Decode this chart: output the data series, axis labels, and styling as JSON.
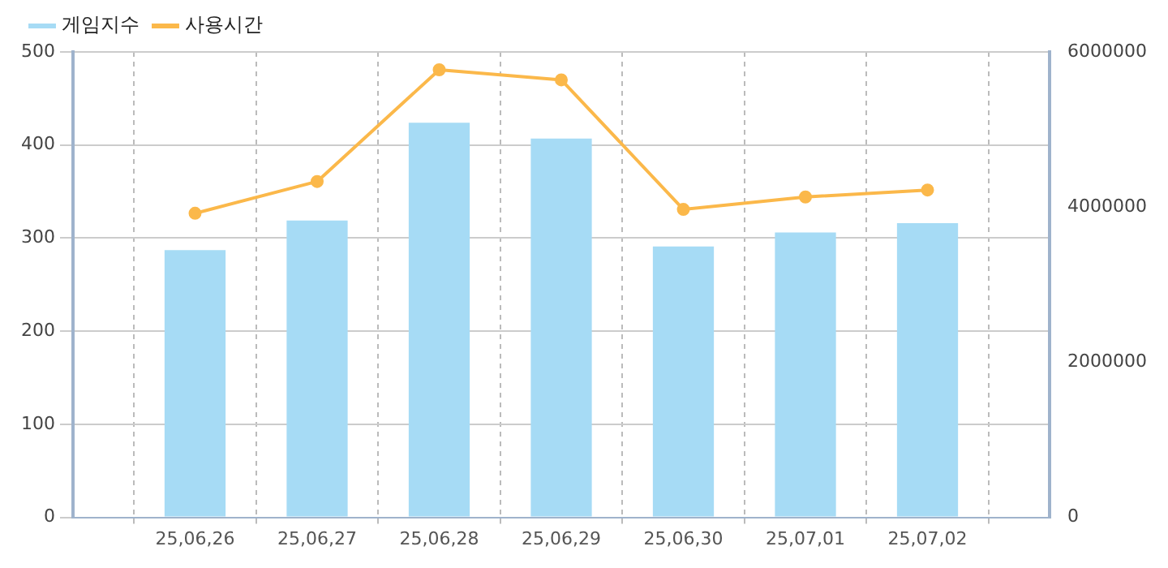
{
  "chart_data": {
    "type": "bar",
    "categories": [
      "25,06,26",
      "25,06,27",
      "25,06,28",
      "25,06,29",
      "25,06,30",
      "25,07,01",
      "25,07,02"
    ],
    "series": [
      {
        "name": "게임지수",
        "color": "#a6dbf5",
        "values": [
          287,
          319,
          424,
          407,
          291,
          306,
          316
        ]
      },
      {
        "name": "사용시간",
        "type": "line",
        "axis": "y2",
        "color": "#fbb84a",
        "values": [
          3920000,
          4330000,
          5770000,
          5640000,
          3970000,
          4130000,
          4220000
        ]
      }
    ],
    "ylim": [
      0,
      500
    ],
    "yticks": [
      0,
      100,
      200,
      300,
      400,
      500
    ],
    "y2lim": [
      0,
      6000000
    ],
    "y2ticks": [
      0,
      2000000,
      4000000,
      6000000
    ],
    "grid": true,
    "legend": "top left",
    "marker": "circle",
    "line_style": "solid"
  }
}
